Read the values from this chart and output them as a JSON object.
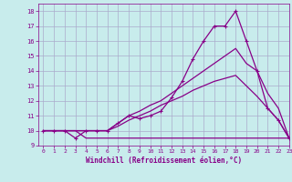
{
  "xlabel": "Windchill (Refroidissement éolien,°C)",
  "background_color": "#c8ecec",
  "grid_color": "#aaaacc",
  "line_color": "#880088",
  "x_values": [
    0,
    1,
    2,
    3,
    4,
    5,
    6,
    7,
    8,
    9,
    10,
    11,
    12,
    13,
    14,
    15,
    16,
    17,
    18,
    19,
    20,
    21,
    22,
    23
  ],
  "line1_spiky": [
    10,
    10,
    10,
    9.5,
    10,
    10,
    10,
    10.5,
    11,
    10.8,
    11,
    11.3,
    12.2,
    13.3,
    14.8,
    16,
    17,
    17,
    18,
    16,
    14,
    11.5,
    10.7,
    9.5
  ],
  "line2": [
    10,
    10,
    10,
    10,
    10,
    10,
    10,
    10.5,
    11,
    11.3,
    11.7,
    12,
    12.5,
    13,
    13.5,
    14,
    14.5,
    15,
    15.5,
    14.5,
    14,
    12.5,
    11.5,
    9.5
  ],
  "line3": [
    10,
    10,
    10,
    10,
    10,
    10,
    10,
    10.3,
    10.7,
    11,
    11.3,
    11.7,
    12,
    12.3,
    12.7,
    13,
    13.3,
    13.5,
    13.7,
    13,
    12.3,
    11.5,
    10.7,
    9.5
  ],
  "line4_flat": [
    10,
    10,
    10,
    10,
    9.5,
    9.5,
    9.5,
    9.5,
    9.5,
    9.5,
    9.5,
    9.5,
    9.5,
    9.5,
    9.5,
    9.5,
    9.5,
    9.5,
    9.5,
    9.5,
    9.5,
    9.5,
    9.5,
    9.5
  ],
  "ylim": [
    9,
    18.5
  ],
  "xlim": [
    -0.5,
    23
  ],
  "yticks": [
    9,
    10,
    11,
    12,
    13,
    14,
    15,
    16,
    17,
    18
  ],
  "xticks": [
    0,
    1,
    2,
    3,
    4,
    5,
    6,
    7,
    8,
    9,
    10,
    11,
    12,
    13,
    14,
    15,
    16,
    17,
    18,
    19,
    20,
    21,
    22,
    23
  ],
  "marker_size": 3,
  "line_width": 0.9,
  "tick_fontsize": 5,
  "xlabel_fontsize": 5.5
}
